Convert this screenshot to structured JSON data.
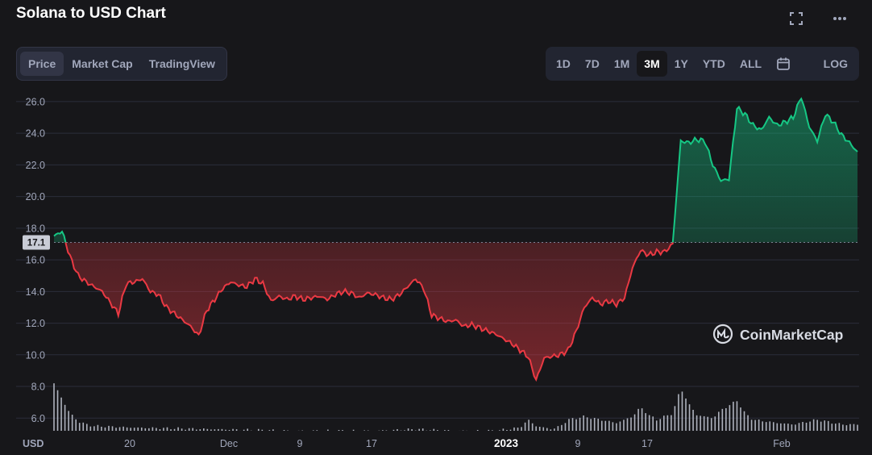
{
  "title": "Solana to USD Chart",
  "header_icons": [
    "fullscreen-icon",
    "more-icon"
  ],
  "tabs": [
    {
      "label": "Price",
      "active": true
    },
    {
      "label": "Market Cap",
      "active": false
    },
    {
      "label": "TradingView",
      "active": false
    }
  ],
  "ranges": [
    {
      "label": "1D",
      "active": false
    },
    {
      "label": "7D",
      "active": false
    },
    {
      "label": "1M",
      "active": false
    },
    {
      "label": "3M",
      "active": true
    },
    {
      "label": "1Y",
      "active": false
    },
    {
      "label": "YTD",
      "active": false
    },
    {
      "label": "ALL",
      "active": false
    }
  ],
  "calendar_icon": "calendar-icon",
  "log_label": "LOG",
  "watermark": {
    "text": "CoinMarketCap",
    "icon": "coinmarketcap-logo-icon"
  },
  "colors": {
    "up": "#16c784",
    "down": "#ea3943",
    "background": "#17171a"
  },
  "chart_data": {
    "type": "line",
    "currency_label": "USD",
    "y_ticks": [
      "26.0",
      "24.0",
      "22.0",
      "20.0",
      "18.0",
      "16.0",
      "14.0",
      "12.0",
      "10.0",
      "8.0",
      "6.0"
    ],
    "ylim": [
      5.2,
      26.4
    ],
    "baseline": 17.1,
    "baseline_label": "17.1",
    "x_ticks": [
      {
        "label": "20",
        "bold": false
      },
      {
        "label": "Dec",
        "bold": false
      },
      {
        "label": "9",
        "bold": false
      },
      {
        "label": "17",
        "bold": false
      },
      {
        "label": "2023",
        "bold": true
      },
      {
        "label": "9",
        "bold": false
      },
      {
        "label": "17",
        "bold": false
      },
      {
        "label": "Feb",
        "bold": false
      }
    ],
    "price_series": {
      "x": [
        0,
        1,
        2,
        3,
        4,
        6,
        8,
        9,
        10,
        11,
        12,
        13,
        14,
        15,
        16,
        17,
        18,
        19,
        20,
        21,
        22,
        23,
        24,
        25,
        26,
        27,
        28,
        29,
        30,
        31,
        32,
        33,
        34,
        35,
        36,
        37,
        38,
        39,
        40,
        41,
        42,
        43,
        44,
        45,
        46,
        47,
        48,
        49,
        50,
        51,
        52,
        53,
        54,
        55,
        56,
        57,
        58,
        59,
        60,
        61,
        62,
        63,
        64,
        65,
        66,
        67,
        68,
        69,
        70,
        71,
        72,
        73,
        74,
        75,
        76,
        77,
        78,
        79,
        80,
        81,
        82,
        83,
        84,
        85,
        86,
        87,
        88,
        89,
        90,
        91,
        92,
        93,
        94,
        95,
        96,
        97,
        98,
        99,
        100
      ],
      "y": [
        17.5,
        17.8,
        16.2,
        15.0,
        14.6,
        14.0,
        12.6,
        14.5,
        14.6,
        14.8,
        14.0,
        13.8,
        13.0,
        12.6,
        12.2,
        11.8,
        11.2,
        12.8,
        13.5,
        14.2,
        14.6,
        14.4,
        14.3,
        14.8,
        14.5,
        13.4,
        13.7,
        13.5,
        13.7,
        13.5,
        13.6,
        13.7,
        13.5,
        13.8,
        14.0,
        13.9,
        13.6,
        13.9,
        13.8,
        13.6,
        13.5,
        13.8,
        14.3,
        14.8,
        14.2,
        12.5,
        12.3,
        12.1,
        12.2,
        11.8,
        11.9,
        11.7,
        11.5,
        11.3,
        11.0,
        10.7,
        10.3,
        9.9,
        8.4,
        9.8,
        9.9,
        10.0,
        10.3,
        11.5,
        13.0,
        13.6,
        13.2,
        13.4,
        13.2,
        13.6,
        15.5,
        16.6,
        16.3,
        16.5,
        16.5,
        17.0,
        23.5,
        23.4,
        23.6,
        23.5,
        22.0,
        21.0,
        21.1,
        25.6,
        25.2,
        24.5,
        24.2,
        25.0,
        24.5,
        24.7,
        25.0,
        26.3,
        24.4,
        23.5,
        25.2,
        24.7,
        23.9,
        23.4,
        22.8
      ]
    },
    "volume_series": {
      "x": [
        0,
        1,
        2,
        3,
        4,
        5,
        10,
        20,
        30,
        40,
        45,
        50,
        55,
        58,
        59,
        60,
        61,
        62,
        63,
        64,
        66,
        68,
        70,
        72,
        73,
        74,
        75,
        77,
        78,
        79,
        80,
        82,
        83,
        85,
        86,
        87,
        90,
        92,
        95,
        98,
        100
      ],
      "y": [
        8.2,
        7.2,
        6.3,
        5.8,
        5.6,
        5.5,
        5.4,
        5.3,
        5.2,
        5.2,
        5.3,
        5.2,
        5.2,
        5.4,
        5.9,
        5.5,
        5.4,
        5.3,
        5.5,
        5.9,
        6.1,
        5.9,
        5.7,
        6.1,
        6.7,
        6.2,
        5.9,
        6.3,
        7.9,
        6.9,
        6.2,
        6.0,
        6.5,
        7.1,
        6.3,
        5.9,
        5.7,
        5.6,
        5.9,
        5.6,
        5.6
      ]
    }
  }
}
